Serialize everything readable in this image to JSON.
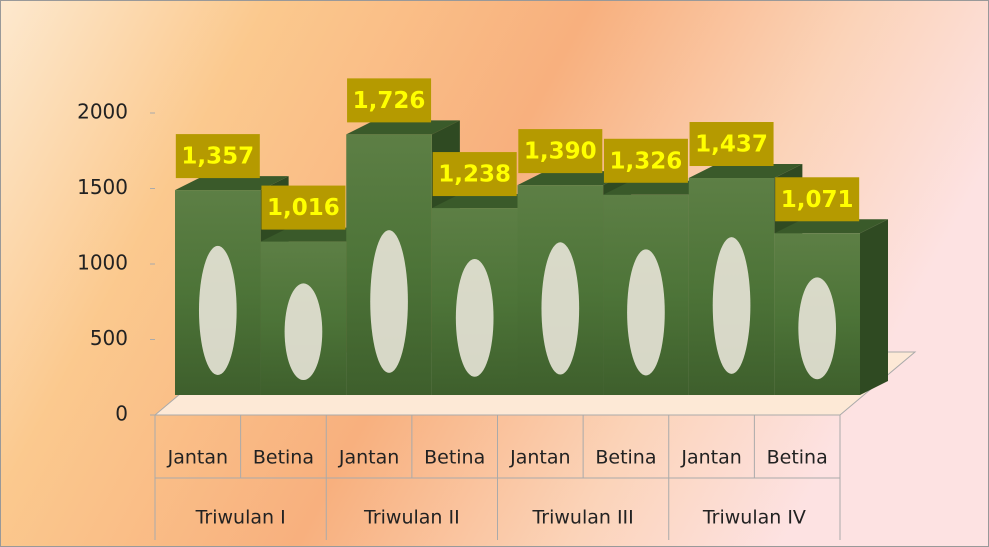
{
  "chart_data": {
    "type": "bar",
    "categories": [
      "Jantan",
      "Betina",
      "Jantan",
      "Betina",
      "Jantan",
      "Betina",
      "Jantan",
      "Betina"
    ],
    "groups": [
      "Triwulan I",
      "Triwulan II",
      "Triwulan III",
      "Triwulan IV"
    ],
    "values": [
      1357,
      1016,
      1726,
      1238,
      1390,
      1326,
      1437,
      1071
    ],
    "value_labels": [
      "1,357",
      "1,016",
      "1,726",
      "1,238",
      "1,390",
      "1,326",
      "1,437",
      "1,071"
    ],
    "color": "#4f7a3a",
    "ylim": [
      0,
      2000
    ],
    "yticks": [
      0,
      500,
      1000,
      1500,
      2000
    ],
    "grid": false
  }
}
